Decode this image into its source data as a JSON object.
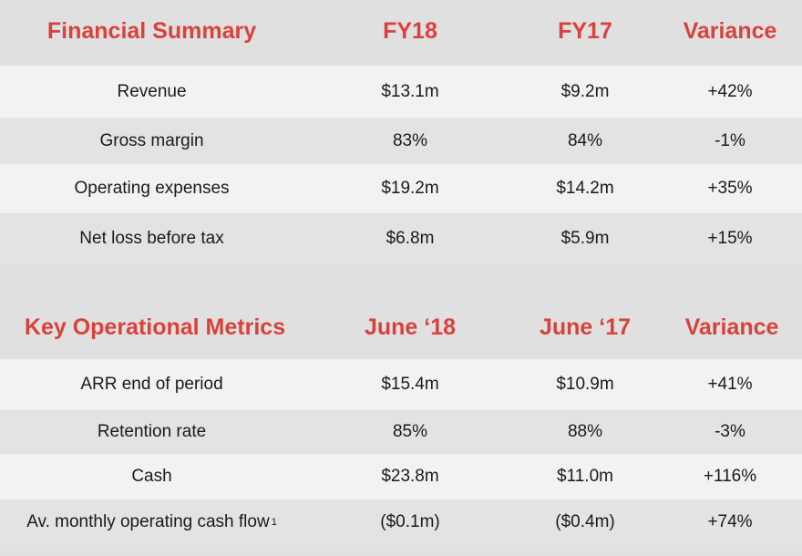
{
  "financial": {
    "headers": [
      "Financial Summary",
      "FY18",
      "FY17",
      "Variance"
    ],
    "rows": [
      [
        "Revenue",
        "$13.1m",
        "$9.2m",
        "+42%"
      ],
      [
        "Gross margin",
        "83%",
        "84%",
        "-1%"
      ],
      [
        "Operating expenses",
        "$19.2m",
        "$14.2m",
        "+35%"
      ],
      [
        "Net loss before tax",
        "$6.8m",
        "$5.9m",
        "+15%"
      ]
    ]
  },
  "operational": {
    "headers": [
      "Key Operational Metrics",
      "June ‘18",
      "June ‘17",
      "Variance"
    ],
    "rows": [
      [
        "ARR end of period",
        "$15.4m",
        "$10.9m",
        "+41%"
      ],
      [
        "Retention rate",
        "85%",
        "88%",
        "-3%"
      ],
      [
        "Cash",
        "$23.8m",
        "$11.0m",
        "+116%"
      ],
      [
        "Av. monthly operating cash flow",
        "($0.1m)",
        "($0.4m)",
        "+74%"
      ]
    ],
    "footnote_marker": "1"
  },
  "colors": {
    "accent": "#d9413b",
    "background": "#e0e0e0",
    "row_light": "#f2f2f2",
    "row_dark": "#e3e3e3"
  }
}
